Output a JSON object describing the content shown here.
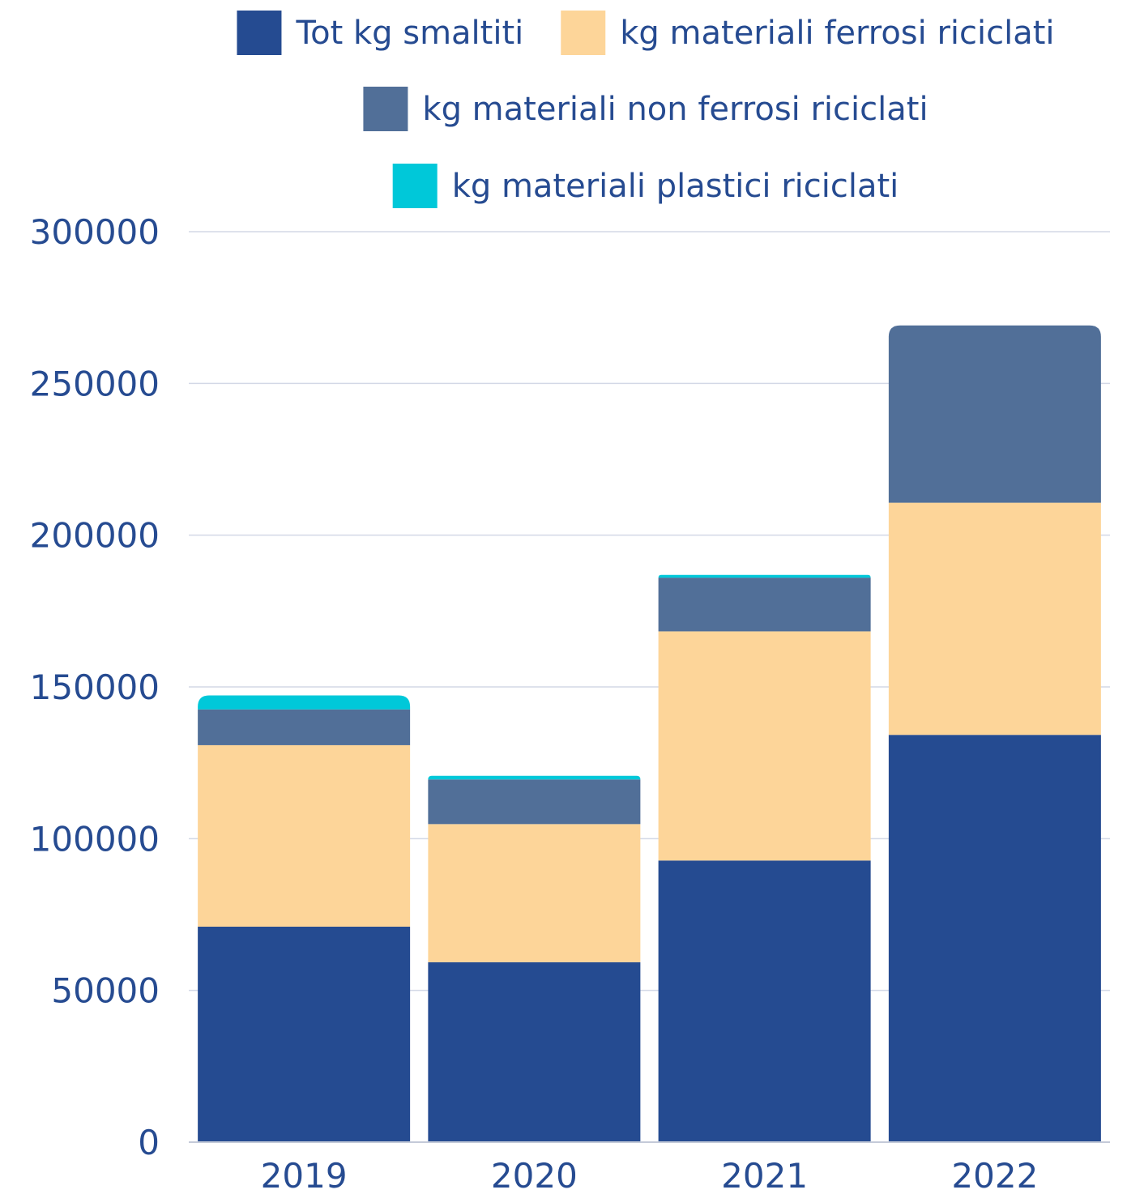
{
  "chart_data": {
    "type": "bar",
    "stacked": true,
    "categories": [
      "2019",
      "2020",
      "2021",
      "2022"
    ],
    "series": [
      {
        "name": "Tot kg smaltiti",
        "color": "#254b91",
        "values": [
          71000,
          59300,
          92800,
          134200
        ]
      },
      {
        "name": "kg materiali ferrosi riciclati",
        "color": "#fdd599",
        "values": [
          59800,
          45500,
          75500,
          76500
        ]
      },
      {
        "name": "kg materiali non ferrosi riciclati",
        "color": "#516f98",
        "values": [
          11800,
          14700,
          17700,
          58400
        ]
      },
      {
        "name": "kg materiali plastici riciclati",
        "color": "#00c8d9",
        "values": [
          4600,
          1200,
          900,
          0
        ]
      }
    ],
    "ylim": [
      0,
      300000
    ],
    "yticks": [
      "0",
      "50000",
      "100000",
      "150000",
      "200000",
      "250000",
      "300000"
    ],
    "grid": true,
    "legend": "top-center",
    "title": "",
    "xlabel": "",
    "ylabel": ""
  }
}
